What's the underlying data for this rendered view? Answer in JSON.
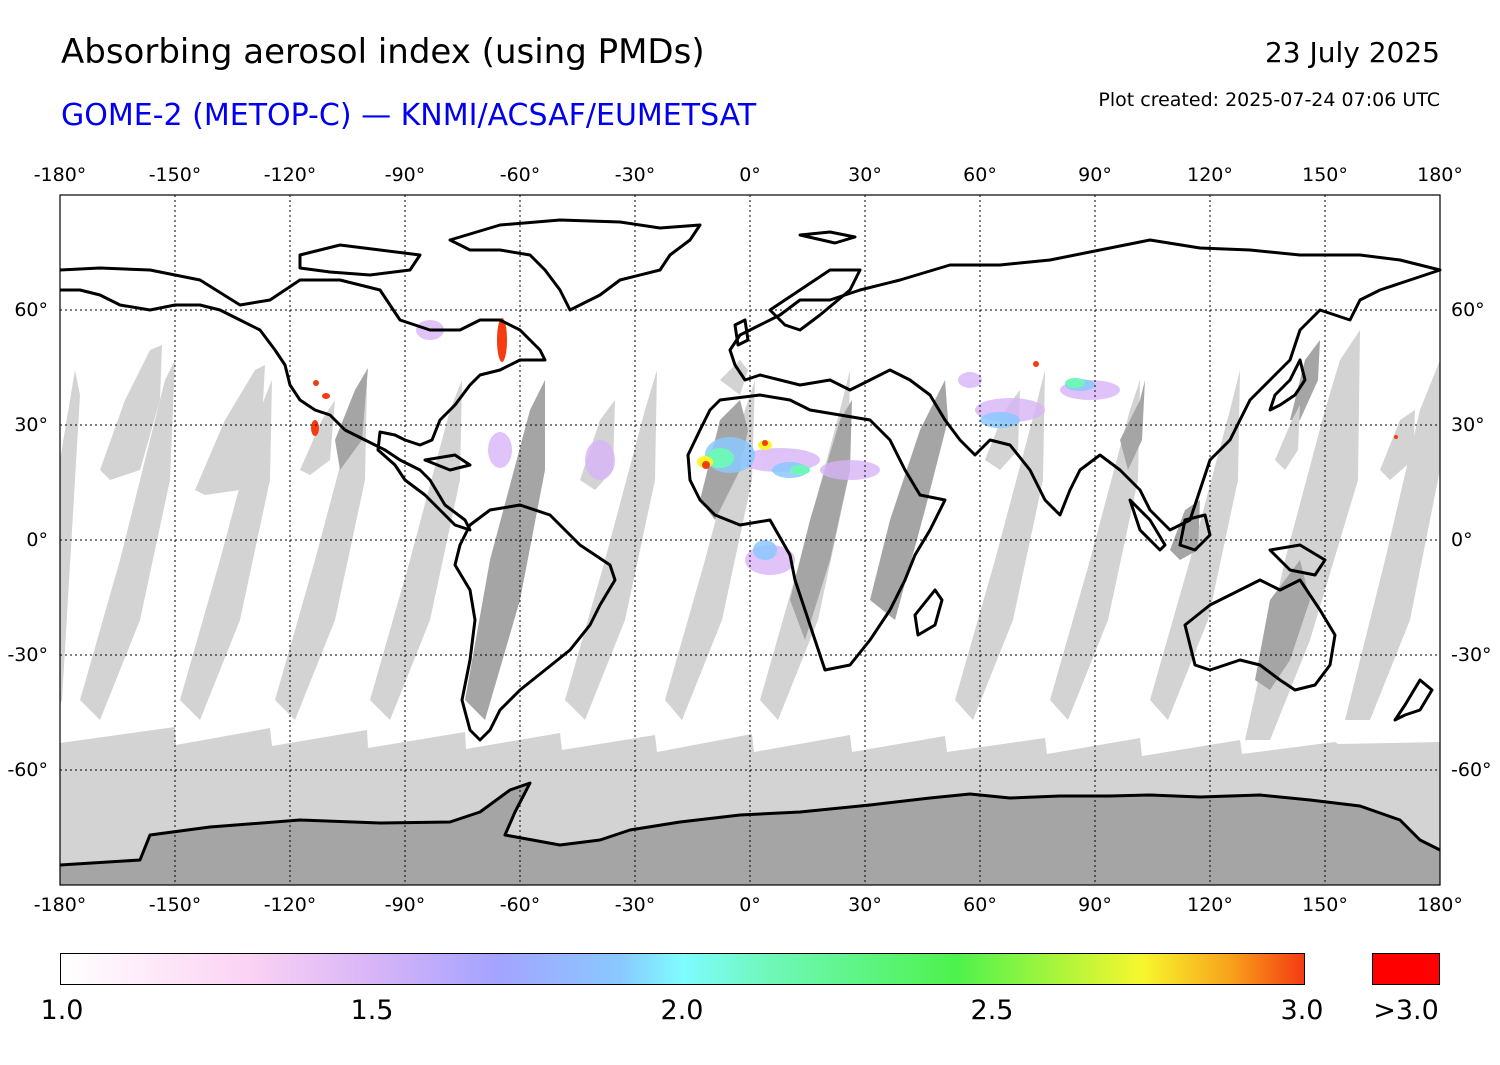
{
  "header": {
    "title": "Absorbing aerosol index (using PMDs)",
    "subtitle": "GOME-2 (METOP-C) — KNMI/ACSAF/EUMETSAT",
    "date": "23 July 2025",
    "created": "Plot created: 2025-07-24 07:06 UTC"
  },
  "map": {
    "lon_ticks": [
      "-180°",
      "-150°",
      "-120°",
      "-90°",
      "-60°",
      "-30°",
      "0°",
      "30°",
      "60°",
      "90°",
      "120°",
      "150°",
      "180°"
    ],
    "lat_ticks": [
      "60°",
      "30°",
      "0°",
      "-30°",
      "-60°"
    ],
    "lon_range": [
      -180,
      180
    ],
    "lat_range": [
      -90,
      90
    ],
    "projection": "equirectangular",
    "gridlines": "dotted",
    "colors": {
      "no_data_light": "#d3d3d3",
      "no_data_dark": "#a5a5a5",
      "coastline": "#000000"
    },
    "aerosol_hotspots": [
      {
        "region": "Eastern Canada",
        "lon": -62,
        "lat": 55,
        "level": ">3.0"
      },
      {
        "region": "Western Sahara",
        "lon": -12,
        "lat": 20,
        "level": "3.0"
      },
      {
        "region": "Sahara",
        "lon": 4,
        "lat": 24,
        "level": "2.5"
      },
      {
        "region": "Arabian Peninsula",
        "lon": 60,
        "lat": 30,
        "level": "2.2"
      },
      {
        "region": "Central Asia",
        "lon": 85,
        "lat": 40,
        "level": "2.0"
      },
      {
        "region": "Gulf of Guinea",
        "lon": 6,
        "lat": -2,
        "level": "2.0"
      },
      {
        "region": "Northwest Mexico",
        "lon": -112,
        "lat": 31,
        "level": ">3.0"
      }
    ]
  },
  "colorbar": {
    "labels": [
      "1.0",
      "1.5",
      "2.0",
      "2.5",
      "3.0"
    ],
    "values": [
      1.0,
      1.5,
      2.0,
      2.5,
      3.0
    ],
    "range": [
      1.0,
      3.0
    ],
    "over_label": ">3.0",
    "over_color": "#ff0000"
  }
}
